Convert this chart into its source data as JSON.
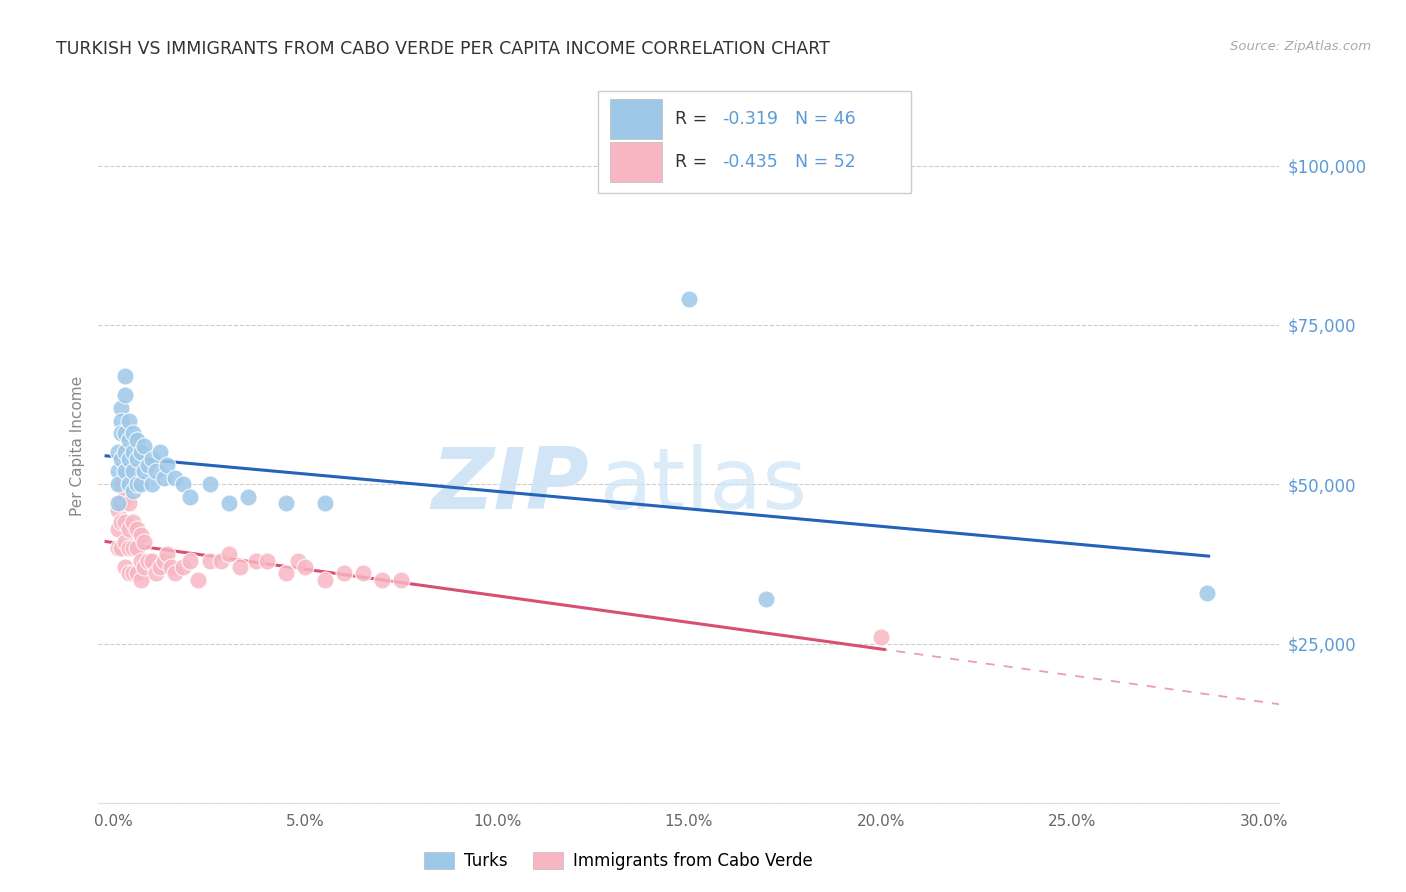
{
  "title": "TURKISH VS IMMIGRANTS FROM CABO VERDE PER CAPITA INCOME CORRELATION CHART",
  "source": "Source: ZipAtlas.com",
  "ylabel": "Per Capita Income",
  "xlabel_ticks": [
    "0.0%",
    "",
    "5.0%",
    "",
    "10.0%",
    "",
    "15.0%",
    "",
    "20.0%",
    "",
    "25.0%",
    "",
    "30.0%"
  ],
  "xlabel_vals": [
    0.0,
    0.025,
    0.05,
    0.075,
    0.1,
    0.125,
    0.15,
    0.175,
    0.2,
    0.225,
    0.25,
    0.275,
    0.3
  ],
  "xtick_major": [
    0.0,
    0.05,
    0.1,
    0.15,
    0.2,
    0.25,
    0.3
  ],
  "xtick_major_labels": [
    "0.0%",
    "5.0%",
    "10.0%",
    "15.0%",
    "20.0%",
    "25.0%",
    "30.0%"
  ],
  "ytick_vals": [
    0,
    25000,
    50000,
    75000,
    100000
  ],
  "ytick_labels": [
    "",
    "$25,000",
    "$50,000",
    "$75,000",
    "$100,000"
  ],
  "xlim": [
    -0.004,
    0.304
  ],
  "ylim": [
    0,
    112000
  ],
  "legend_label_turks": "Turks",
  "legend_label_cabo": "Immigrants from Cabo Verde",
  "turks_color": "#9ec8e8",
  "cabo_color": "#f7b6c2",
  "turks_line_color": "#2563b8",
  "cabo_line_color": "#d94f72",
  "watermark_color": "#cde3f5",
  "background_color": "#ffffff",
  "grid_color": "#cccccc",
  "title_color": "#333333",
  "ytick_color": "#5b9bd5",
  "turks_x": [
    0.001,
    0.001,
    0.001,
    0.001,
    0.002,
    0.002,
    0.002,
    0.002,
    0.003,
    0.003,
    0.003,
    0.003,
    0.003,
    0.004,
    0.004,
    0.004,
    0.004,
    0.005,
    0.005,
    0.005,
    0.005,
    0.006,
    0.006,
    0.006,
    0.007,
    0.007,
    0.008,
    0.008,
    0.009,
    0.01,
    0.01,
    0.011,
    0.012,
    0.013,
    0.014,
    0.016,
    0.018,
    0.02,
    0.025,
    0.03,
    0.035,
    0.045,
    0.055,
    0.15,
    0.17,
    0.285
  ],
  "turks_y": [
    55000,
    52000,
    50000,
    47000,
    62000,
    60000,
    58000,
    54000,
    67000,
    64000,
    58000,
    55000,
    52000,
    60000,
    57000,
    54000,
    50000,
    58000,
    55000,
    52000,
    49000,
    57000,
    54000,
    50000,
    55000,
    50000,
    56000,
    52000,
    53000,
    54000,
    50000,
    52000,
    55000,
    51000,
    53000,
    51000,
    50000,
    48000,
    50000,
    47000,
    48000,
    47000,
    47000,
    79000,
    32000,
    33000
  ],
  "cabo_x": [
    0.001,
    0.001,
    0.001,
    0.002,
    0.002,
    0.002,
    0.002,
    0.003,
    0.003,
    0.003,
    0.003,
    0.004,
    0.004,
    0.004,
    0.004,
    0.005,
    0.005,
    0.005,
    0.006,
    0.006,
    0.006,
    0.007,
    0.007,
    0.007,
    0.008,
    0.008,
    0.009,
    0.01,
    0.011,
    0.012,
    0.013,
    0.014,
    0.015,
    0.016,
    0.018,
    0.02,
    0.022,
    0.025,
    0.028,
    0.03,
    0.033,
    0.037,
    0.04,
    0.045,
    0.048,
    0.05,
    0.055,
    0.06,
    0.065,
    0.07,
    0.075,
    0.2
  ],
  "cabo_y": [
    46000,
    43000,
    40000,
    50000,
    47000,
    44000,
    40000,
    48000,
    44000,
    41000,
    37000,
    47000,
    43000,
    40000,
    36000,
    44000,
    40000,
    36000,
    43000,
    40000,
    36000,
    42000,
    38000,
    35000,
    41000,
    37000,
    38000,
    38000,
    36000,
    37000,
    38000,
    39000,
    37000,
    36000,
    37000,
    38000,
    35000,
    38000,
    38000,
    39000,
    37000,
    38000,
    38000,
    36000,
    38000,
    37000,
    35000,
    36000,
    36000,
    35000,
    35000,
    26000
  ]
}
